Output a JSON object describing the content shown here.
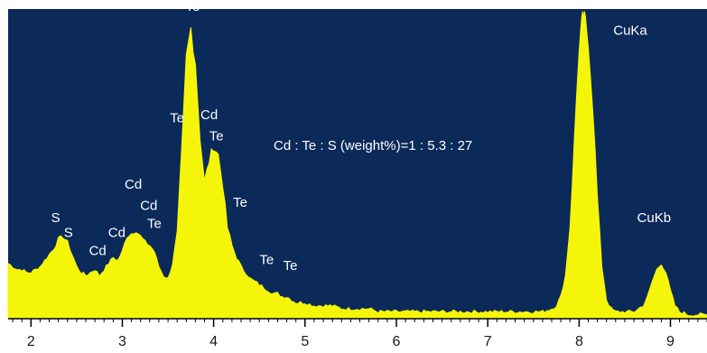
{
  "chart_data": {
    "type": "area",
    "title": "",
    "xlabel": "",
    "ylabel": "",
    "xlim": [
      1.75,
      9.4
    ],
    "ylim": [
      0,
      100
    ],
    "grid": false,
    "colors": {
      "background": "#0b2a5a",
      "fill": "#f5f50a",
      "axis": "#000000"
    },
    "x_ticks": [
      2,
      3,
      4,
      5,
      6,
      7,
      8,
      9
    ],
    "x_tick_labels": [
      "2",
      "3",
      "4",
      "5",
      "6",
      "7",
      "8",
      "9"
    ],
    "annotation": "Cd : Te : S (weight%)=1 : 5.3 : 27",
    "spectrum": {
      "x": [
        1.75,
        1.8,
        1.85,
        1.9,
        1.95,
        2.0,
        2.05,
        2.1,
        2.15,
        2.2,
        2.25,
        2.3,
        2.35,
        2.4,
        2.45,
        2.5,
        2.55,
        2.6,
        2.65,
        2.7,
        2.75,
        2.8,
        2.85,
        2.9,
        2.95,
        3.0,
        3.05,
        3.1,
        3.15,
        3.2,
        3.25,
        3.3,
        3.35,
        3.4,
        3.45,
        3.5,
        3.55,
        3.6,
        3.65,
        3.7,
        3.75,
        3.8,
        3.85,
        3.9,
        3.95,
        4.0,
        4.05,
        4.1,
        4.15,
        4.2,
        4.25,
        4.3,
        4.35,
        4.4,
        4.45,
        4.5,
        4.55,
        4.6,
        4.65,
        4.7,
        4.75,
        4.8,
        4.85,
        4.9,
        5.0,
        5.1,
        5.2,
        5.3,
        5.4,
        5.5,
        5.6,
        5.7,
        5.8,
        5.9,
        6.0,
        6.1,
        6.2,
        6.3,
        6.4,
        6.5,
        6.6,
        6.7,
        6.8,
        6.9,
        7.0,
        7.1,
        7.2,
        7.3,
        7.4,
        7.5,
        7.6,
        7.7,
        7.75,
        7.8,
        7.85,
        7.9,
        7.95,
        8.0,
        8.03,
        8.05,
        8.07,
        8.1,
        8.15,
        8.2,
        8.25,
        8.3,
        8.35,
        8.4,
        8.5,
        8.6,
        8.7,
        8.75,
        8.8,
        8.85,
        8.9,
        8.95,
        9.0,
        9.05,
        9.1,
        9.2,
        9.3,
        9.4
      ],
      "y": [
        18,
        17,
        16,
        16,
        15,
        15,
        16,
        17,
        19,
        21,
        23,
        26,
        27,
        25,
        21,
        17,
        15,
        14,
        15,
        16,
        14,
        16,
        18,
        20,
        19,
        22,
        27,
        28,
        29,
        27,
        25,
        24,
        22,
        17,
        14,
        13,
        18,
        28,
        55,
        86,
        96,
        85,
        60,
        45,
        52,
        57,
        54,
        44,
        30,
        24,
        20,
        17,
        15,
        13,
        12,
        11,
        10,
        9,
        8,
        8,
        7,
        7,
        6,
        5,
        5,
        4,
        4,
        4,
        3,
        3,
        3,
        3,
        2,
        2,
        2,
        2,
        2,
        2,
        2,
        2,
        2,
        2,
        2,
        2,
        2,
        2,
        2,
        2,
        2,
        2,
        2,
        3,
        4,
        7,
        14,
        30,
        60,
        90,
        98,
        100,
        98,
        92,
        70,
        40,
        17,
        6,
        3,
        2,
        2,
        2,
        4,
        7,
        12,
        16,
        18,
        15,
        9,
        4,
        2,
        1,
        1,
        1
      ],
      "notes": "y values are relative counts, 100 = tallest (CuKa) peak"
    },
    "peaks": [
      {
        "label": "S",
        "x": 2.27,
        "y": 30
      },
      {
        "label": "S",
        "x": 2.41,
        "y": 25
      },
      {
        "label": "Cd",
        "x": 2.73,
        "y": 19
      },
      {
        "label": "Cd",
        "x": 2.94,
        "y": 25
      },
      {
        "label": "Cd",
        "x": 3.12,
        "y": 41
      },
      {
        "label": "Cd",
        "x": 3.29,
        "y": 34
      },
      {
        "label": "Te",
        "x": 3.35,
        "y": 28
      },
      {
        "label": "Te",
        "x": 3.77,
        "y": 100
      },
      {
        "label": "Te",
        "x": 3.6,
        "y": 63
      },
      {
        "label": "Cd",
        "x": 3.95,
        "y": 64
      },
      {
        "label": "Te",
        "x": 4.03,
        "y": 57
      },
      {
        "label": "Te",
        "x": 4.29,
        "y": 35
      },
      {
        "label": "Te",
        "x": 4.58,
        "y": 16
      },
      {
        "label": "Te",
        "x": 4.84,
        "y": 14
      },
      {
        "label": "CuKa",
        "x": 8.56,
        "y": 92
      },
      {
        "label": "CuKb",
        "x": 8.82,
        "y": 30
      }
    ]
  }
}
